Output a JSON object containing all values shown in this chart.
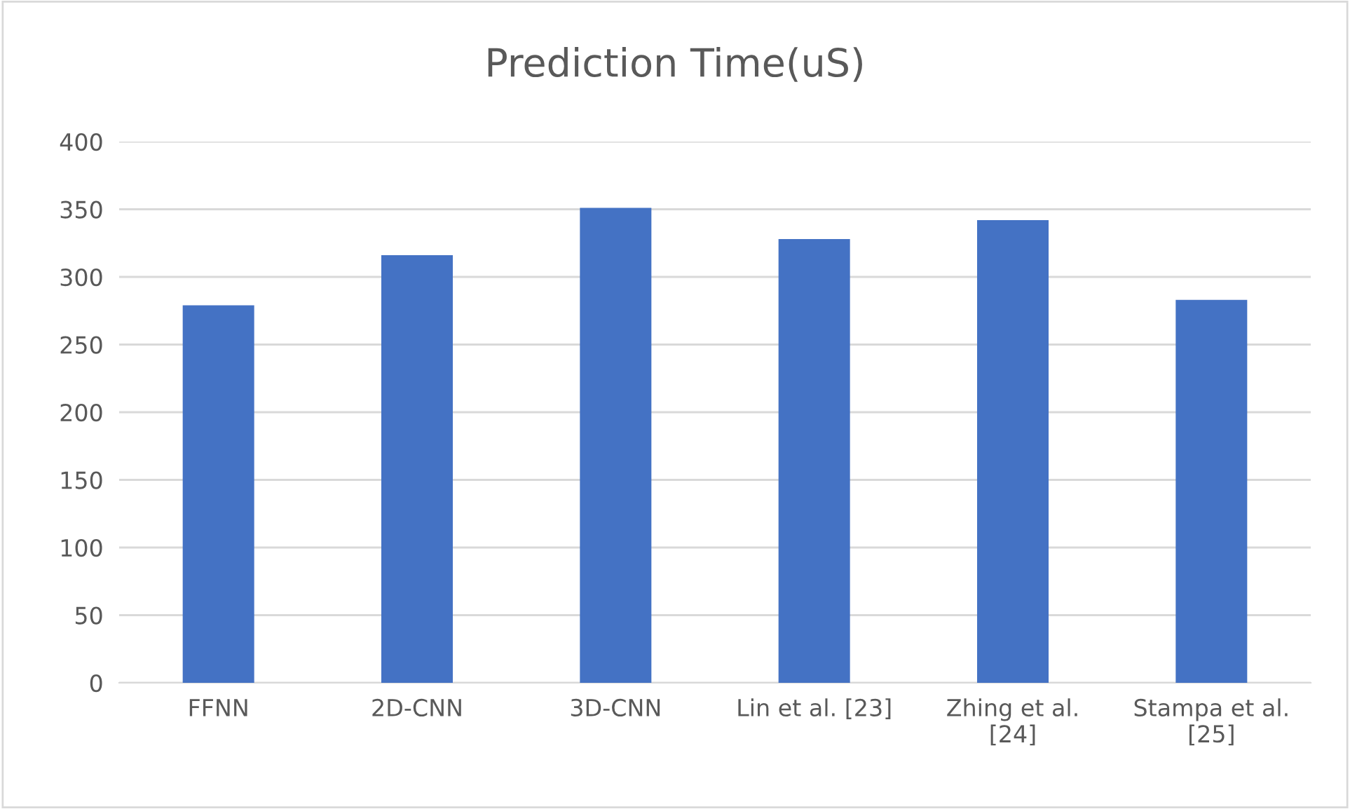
{
  "chart_data": {
    "type": "bar",
    "title": "Prediction Time(uS)",
    "categories": [
      "FFNN",
      "2D-CNN",
      "3D-CNN",
      "Lin et al. [23]",
      "Zhing et al.\n[24]",
      "Stampa et al.\n[25]"
    ],
    "values": [
      279,
      316,
      351,
      328,
      342,
      283
    ],
    "color": "#4472c4",
    "ylim": [
      0,
      400
    ],
    "yticks": [
      0,
      50,
      100,
      150,
      200,
      250,
      300,
      350,
      400
    ],
    "grid": "y"
  }
}
